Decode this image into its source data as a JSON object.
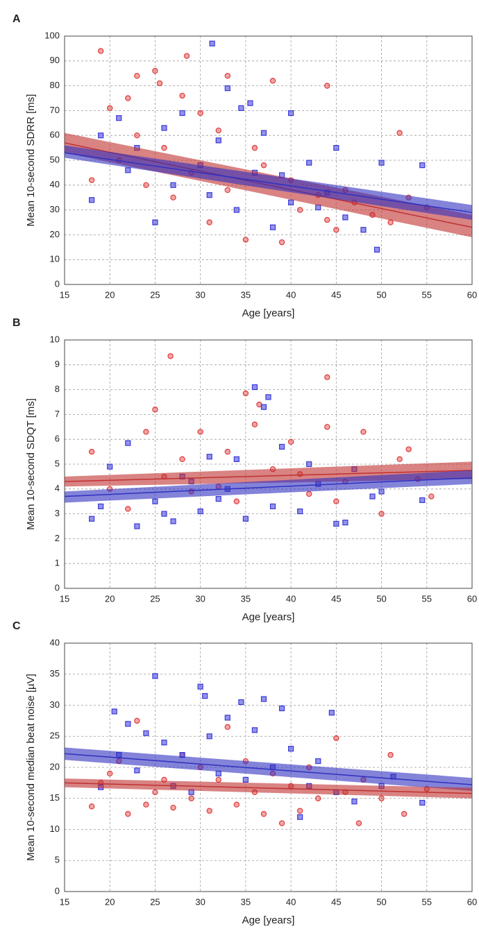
{
  "chart_data": [
    {
      "type": "scatter",
      "panel_label": "A",
      "xlabel": "Age [years]",
      "ylabel": "Mean 10-second SDRR [ms]",
      "xlim": [
        15,
        60
      ],
      "ylim": [
        0,
        100
      ],
      "xticks": [
        15,
        20,
        25,
        30,
        35,
        40,
        45,
        50,
        55,
        60
      ],
      "yticks": [
        0,
        10,
        20,
        30,
        40,
        50,
        60,
        70,
        80,
        90,
        100
      ],
      "grid": true,
      "series": [
        {
          "color": "#e03a3a",
          "marker": "circle",
          "x": [
            19,
            28.5,
            25,
            23,
            33,
            38,
            44,
            25.5,
            20,
            28,
            30,
            22,
            18,
            21,
            23,
            24,
            26,
            27,
            29,
            31,
            33,
            35,
            37,
            39,
            41,
            43,
            45,
            47,
            49,
            51,
            52,
            53,
            55,
            46,
            36,
            32,
            40,
            44
          ],
          "values": [
            94,
            92,
            86,
            84,
            84,
            82,
            80,
            81,
            71,
            76,
            69,
            75,
            42,
            50,
            60,
            40,
            55,
            35,
            45,
            25,
            38,
            18,
            48,
            17,
            30,
            36,
            22,
            33,
            28,
            25,
            61,
            35,
            31,
            38,
            55,
            62,
            42,
            26
          ]
        },
        {
          "color": "#3a3ad8",
          "marker": "square",
          "x": [
            31.3,
            33,
            34.5,
            35.5,
            40,
            19,
            21,
            23,
            25,
            26,
            28,
            30,
            31,
            32,
            34,
            36,
            37,
            38,
            40,
            42,
            44,
            45,
            46,
            48,
            49.5,
            50,
            54.5,
            18,
            22,
            27,
            39,
            43
          ],
          "values": [
            97,
            79,
            71,
            73,
            69,
            60,
            67,
            55,
            25,
            63,
            69,
            48,
            36,
            58,
            30,
            45,
            61,
            23,
            33,
            49,
            37,
            55,
            27,
            22,
            14,
            49,
            48,
            34,
            46,
            40,
            44,
            31
          ]
        }
      ],
      "fits": [
        {
          "color": "#c03030",
          "x": [
            15,
            60
          ],
          "values": [
            57,
            23
          ],
          "lower": [
            53,
            19
          ],
          "upper": [
            61,
            28
          ]
        },
        {
          "color": "#3030c0",
          "x": [
            15,
            60
          ],
          "values": [
            53,
            29
          ],
          "lower": [
            51,
            26
          ],
          "upper": [
            56,
            32
          ]
        }
      ]
    },
    {
      "type": "scatter",
      "panel_label": "B",
      "xlabel": "Age [years]",
      "ylabel": "Mean 10-second SDQT [ms]",
      "xlim": [
        15,
        60
      ],
      "ylim": [
        0,
        10
      ],
      "xticks": [
        15,
        20,
        25,
        30,
        35,
        40,
        45,
        50,
        55,
        60
      ],
      "yticks": [
        0,
        1,
        2,
        3,
        4,
        5,
        6,
        7,
        8,
        9,
        10
      ],
      "grid": true,
      "series": [
        {
          "color": "#e03a3a",
          "marker": "circle",
          "x": [
            26.7,
            44,
            35,
            36.5,
            25,
            18,
            20,
            22,
            24,
            26,
            28,
            30,
            32,
            34,
            36,
            38,
            40,
            42,
            44,
            46,
            48,
            50,
            52,
            54,
            55.5,
            53,
            29,
            33,
            41,
            45
          ],
          "values": [
            9.35,
            8.5,
            7.85,
            7.4,
            7.2,
            5.5,
            4.0,
            3.2,
            6.3,
            4.5,
            5.2,
            6.3,
            4.1,
            3.5,
            6.6,
            4.8,
            5.9,
            3.8,
            6.5,
            4.3,
            6.3,
            3.0,
            5.2,
            4.4,
            3.7,
            5.6,
            3.9,
            5.5,
            4.6,
            3.5
          ]
        },
        {
          "color": "#3a3ad8",
          "marker": "square",
          "x": [
            36,
            37.5,
            37,
            19,
            20,
            22,
            23,
            25,
            26,
            27,
            28,
            30,
            31,
            33,
            34,
            35,
            38,
            39,
            41,
            43,
            45,
            46,
            47,
            49,
            50,
            54.5,
            18,
            29,
            32,
            42
          ],
          "values": [
            8.1,
            7.7,
            7.3,
            3.3,
            4.9,
            5.85,
            2.5,
            3.5,
            3.0,
            2.7,
            4.5,
            3.1,
            5.3,
            4.0,
            5.2,
            2.8,
            3.3,
            5.7,
            3.1,
            4.2,
            2.6,
            2.65,
            4.8,
            3.7,
            3.9,
            3.55,
            2.8,
            4.3,
            3.6,
            5.0
          ]
        }
      ],
      "fits": [
        {
          "color": "#c03030",
          "x": [
            15,
            60
          ],
          "values": [
            4.3,
            4.75
          ],
          "lower": [
            4.1,
            4.4
          ],
          "upper": [
            4.5,
            5.1
          ]
        },
        {
          "color": "#3030c0",
          "x": [
            15,
            60
          ],
          "values": [
            3.7,
            4.45
          ],
          "lower": [
            3.45,
            4.2
          ],
          "upper": [
            3.9,
            4.75
          ]
        }
      ]
    },
    {
      "type": "scatter",
      "panel_label": "C",
      "xlabel": "Age [years]",
      "ylabel": "Mean 10-second median beat noise [µV]",
      "xlim": [
        15,
        60
      ],
      "ylim": [
        0,
        40
      ],
      "xticks": [
        15,
        20,
        25,
        30,
        35,
        40,
        45,
        50,
        55,
        60
      ],
      "yticks": [
        0,
        5,
        10,
        15,
        20,
        25,
        30,
        35,
        40
      ],
      "grid": true,
      "series": [
        {
          "color": "#e03a3a",
          "marker": "circle",
          "x": [
            18,
            19,
            20,
            21,
            22,
            23,
            24,
            25,
            26,
            27,
            28,
            29,
            30,
            31,
            32,
            33,
            34,
            35,
            36,
            37,
            38,
            39,
            40,
            41,
            42,
            43,
            45,
            46,
            47.5,
            50,
            51,
            52.5,
            55,
            48
          ],
          "values": [
            13.7,
            17.5,
            19,
            21,
            12.5,
            27.5,
            14,
            16,
            18,
            13.5,
            22,
            15,
            20,
            13,
            18,
            26.5,
            14,
            21,
            16,
            12.5,
            19,
            11,
            17,
            13,
            20,
            15,
            24.7,
            16,
            11,
            15,
            22,
            12.5,
            16.5,
            18
          ]
        },
        {
          "color": "#3a3ad8",
          "marker": "square",
          "x": [
            25,
            30,
            30.5,
            34.5,
            37,
            39,
            44.5,
            20.5,
            19,
            21,
            22,
            23,
            24,
            26,
            27,
            28,
            29,
            31,
            32,
            33,
            35,
            36,
            38,
            40,
            41,
            42,
            43,
            45,
            47,
            50,
            51.3,
            54.5
          ],
          "values": [
            34.7,
            33,
            31.5,
            30.5,
            31,
            29.5,
            28.8,
            29,
            16.8,
            22,
            27,
            19.5,
            25.5,
            24,
            17,
            22,
            16,
            25,
            19,
            28,
            18,
            26,
            20,
            23,
            12,
            17,
            21,
            16,
            14.5,
            17,
            18.5,
            14.3
          ]
        }
      ],
      "fits": [
        {
          "color": "#3030c0",
          "x": [
            15,
            60
          ],
          "values": [
            22.2,
            17.2
          ],
          "lower": [
            21.2,
            16.2
          ],
          "upper": [
            23.2,
            18.3
          ]
        },
        {
          "color": "#c03030",
          "x": [
            15,
            60
          ],
          "values": [
            17.5,
            15.8
          ],
          "lower": [
            16.8,
            15
          ],
          "upper": [
            18.2,
            16.7
          ]
        }
      ]
    }
  ]
}
